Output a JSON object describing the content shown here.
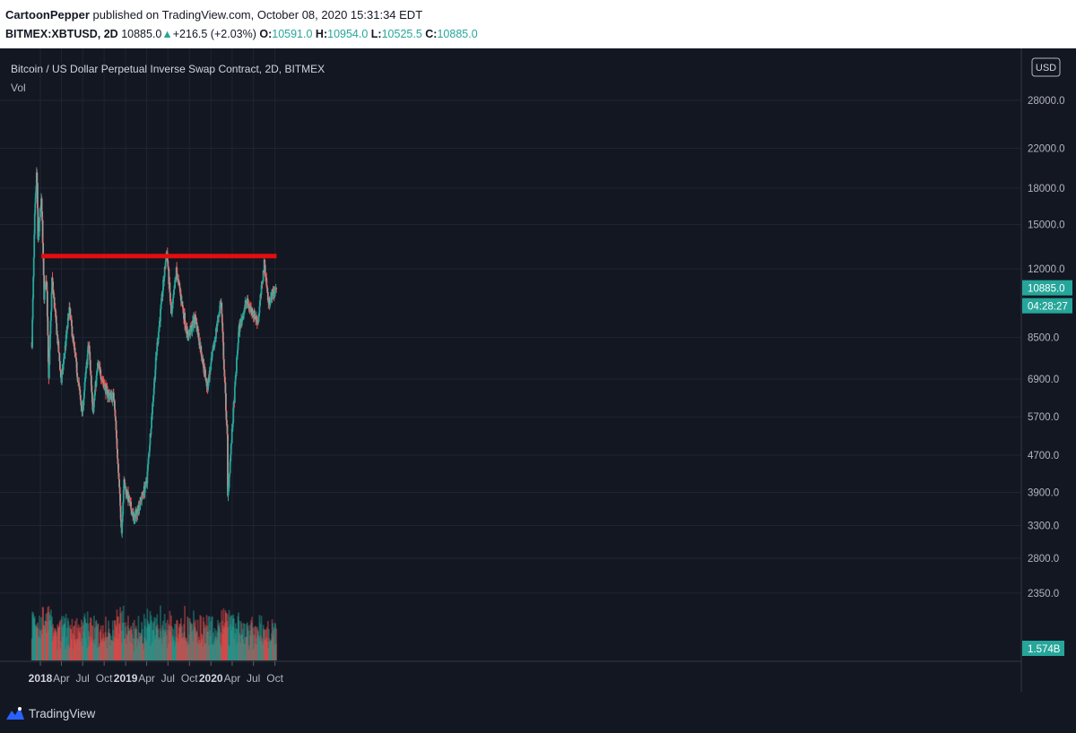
{
  "header": {
    "author": "CartoonPepper",
    "published_text": "published on TradingView.com, October 08, 2020 15:31:34 EDT",
    "symbol": "BITMEX:XBTUSD, 2D",
    "last": "10885.0",
    "change": "+216.5 (+2.03%)",
    "o_label": "O:",
    "o": "10591.0",
    "h_label": "H:",
    "h": "10954.0",
    "l_label": "L:",
    "l": "10525.5",
    "c_label": "C:",
    "c": "10885.0"
  },
  "colors": {
    "background": "#131722",
    "grid": "#1f2433",
    "up": "#26a69a",
    "down": "#ef5350",
    "down_candle": "#a39b97",
    "resistance": "#e50d0d",
    "text": "#b2b5be",
    "price_badge": "#26a69a"
  },
  "footer": {
    "brand": "TradingView",
    "logo_icon": "tradingview-logo-icon"
  },
  "chart_data": {
    "type": "candlestick",
    "title": "Bitcoin / US Dollar Perpetual Inverse Swap Contract, 2D, BITMEX",
    "indicator_label": "Vol",
    "currency_button": "USD",
    "scale": "log",
    "y_ticks": [
      {
        "label": "28000.0",
        "value": 28000
      },
      {
        "label": "22000.0",
        "value": 22000
      },
      {
        "label": "18000.0",
        "value": 18000
      },
      {
        "label": "15000.0",
        "value": 15000
      },
      {
        "label": "12000.0",
        "value": 12000
      },
      {
        "label": "8500.0",
        "value": 8500
      },
      {
        "label": "6900.0",
        "value": 6900
      },
      {
        "label": "5700.0",
        "value": 5700
      },
      {
        "label": "4700.0",
        "value": 4700
      },
      {
        "label": "3900.0",
        "value": 3900
      },
      {
        "label": "3300.0",
        "value": 3300
      },
      {
        "label": "2800.0",
        "value": 2800
      },
      {
        "label": "2350.0",
        "value": 2350
      }
    ],
    "x_ticks": [
      {
        "label": "2018",
        "date": "2018-01-01",
        "major": true
      },
      {
        "label": "Apr",
        "date": "2018-04-01",
        "major": false
      },
      {
        "label": "Jul",
        "date": "2018-07-01",
        "major": false
      },
      {
        "label": "Oct",
        "date": "2018-10-01",
        "major": false
      },
      {
        "label": "2019",
        "date": "2019-01-01",
        "major": true
      },
      {
        "label": "Apr",
        "date": "2019-04-01",
        "major": false
      },
      {
        "label": "Jul",
        "date": "2019-07-01",
        "major": false
      },
      {
        "label": "Oct",
        "date": "2019-10-01",
        "major": false
      },
      {
        "label": "2020",
        "date": "2020-01-01",
        "major": true
      },
      {
        "label": "Apr",
        "date": "2020-04-01",
        "major": false
      },
      {
        "label": "Jul",
        "date": "2020-07-01",
        "major": false
      },
      {
        "label": "Oct",
        "date": "2020-10-01",
        "major": false
      }
    ],
    "resistance": {
      "price": 12800,
      "start": "2018-01-05",
      "end": "2020-10-08"
    },
    "last_price_label": "10885.0",
    "countdown_label": "04:28:27",
    "volume_label": "1.574B",
    "price_path": [
      [
        "2017-11-26",
        8300
      ],
      [
        "2017-12-08",
        15500
      ],
      [
        "2017-12-17",
        19800
      ],
      [
        "2017-12-22",
        13800
      ],
      [
        "2018-01-06",
        17100
      ],
      [
        "2018-01-17",
        10500
      ],
      [
        "2018-01-28",
        11500
      ],
      [
        "2018-02-06",
        6800
      ],
      [
        "2018-02-20",
        11400
      ],
      [
        "2018-04-01",
        6800
      ],
      [
        "2018-05-05",
        9800
      ],
      [
        "2018-06-29",
        5800
      ],
      [
        "2018-07-27",
        8300
      ],
      [
        "2018-08-14",
        5900
      ],
      [
        "2018-09-04",
        7400
      ],
      [
        "2018-10-15",
        6400
      ],
      [
        "2018-11-13",
        6300
      ],
      [
        "2018-12-15",
        3200
      ],
      [
        "2018-12-24",
        4100
      ],
      [
        "2019-02-07",
        3400
      ],
      [
        "2019-04-01",
        4100
      ],
      [
        "2019-05-14",
        8000
      ],
      [
        "2019-06-26",
        13200
      ],
      [
        "2019-07-16",
        9400
      ],
      [
        "2019-08-06",
        11900
      ],
      [
        "2019-09-24",
        8500
      ],
      [
        "2019-10-26",
        9400
      ],
      [
        "2019-12-17",
        6600
      ],
      [
        "2020-02-13",
        10300
      ],
      [
        "2020-03-12",
        5000
      ],
      [
        "2020-03-13",
        3800
      ],
      [
        "2020-04-29",
        8800
      ],
      [
        "2020-06-01",
        10200
      ],
      [
        "2020-07-20",
        9200
      ],
      [
        "2020-08-17",
        12400
      ],
      [
        "2020-09-03",
        10100
      ],
      [
        "2020-09-21",
        10600
      ],
      [
        "2020-10-08",
        10885
      ]
    ]
  }
}
